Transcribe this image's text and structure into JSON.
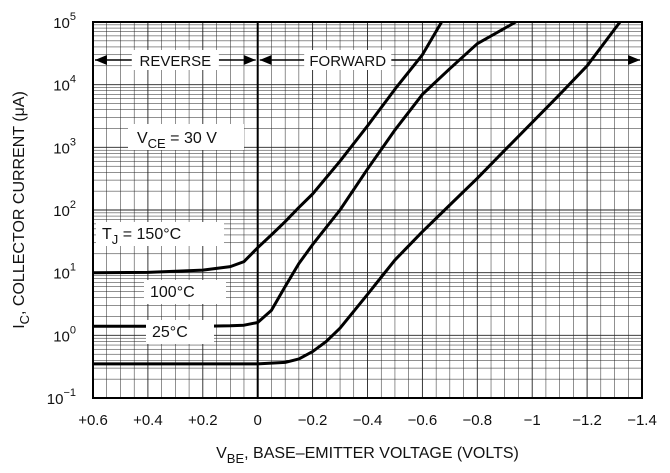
{
  "chart_data": {
    "type": "line",
    "title": "",
    "xlabel": {
      "main": "V",
      "sub": "BE",
      "rest": ", BASE–EMITTER VOLTAGE (VOLTS)"
    },
    "ylabel": {
      "main": "I",
      "sub": "C",
      "rest": ", COLLECTOR CURRENT (μA)"
    },
    "x_scale": "linear",
    "x_direction": "reversed",
    "xlim": [
      0.6,
      -1.4
    ],
    "x_ticks": [
      0.6,
      0.4,
      0.2,
      0,
      -0.2,
      -0.4,
      -0.6,
      -0.8,
      -1.0,
      -1.2,
      -1.4
    ],
    "x_tick_labels": [
      "+0.6",
      "+0.4",
      "+0.2",
      "0",
      "−0.2",
      "−0.4",
      "−0.6",
      "−0.8",
      "−1",
      "−1.2",
      "−1.4"
    ],
    "y_scale": "log",
    "ylim": [
      0.1,
      100000
    ],
    "y_ticks": [
      {
        "base": "10",
        "exp": "−1",
        "value": 0.1
      },
      {
        "base": "10",
        "exp": "0",
        "value": 1
      },
      {
        "base": "10",
        "exp": "1",
        "value": 10
      },
      {
        "base": "10",
        "exp": "2",
        "value": 100
      },
      {
        "base": "10",
        "exp": "3",
        "value": 1000
      },
      {
        "base": "10",
        "exp": "4",
        "value": 10000
      },
      {
        "base": "10",
        "exp": "5",
        "value": 100000
      }
    ],
    "grid": true,
    "regions": [
      {
        "label": "REVERSE",
        "from": 0.6,
        "to": 0
      },
      {
        "label": "FORWARD",
        "from": 0,
        "to": -1.4
      }
    ],
    "annotations": [
      {
        "main": "V",
        "sub": "CE",
        "rest": " = 30 V"
      }
    ],
    "series": [
      {
        "name": {
          "main": "T",
          "sub": "J",
          "rest": " = 150°C"
        },
        "x": [
          0.6,
          0.4,
          0.2,
          0.1,
          0.05,
          0.0,
          -0.05,
          -0.1,
          -0.15,
          -0.2,
          -0.3,
          -0.4,
          -0.5,
          -0.6,
          -0.67
        ],
        "y": [
          10,
          10.1,
          11,
          12.5,
          15,
          25,
          40,
          65,
          110,
          180,
          600,
          2200,
          8500,
          30000,
          100000
        ]
      },
      {
        "name": {
          "main": "",
          "sub": "",
          "rest": "100°C"
        },
        "x": [
          0.6,
          0.4,
          0.2,
          0.1,
          0.05,
          0.0,
          -0.05,
          -0.1,
          -0.15,
          -0.2,
          -0.3,
          -0.4,
          -0.5,
          -0.6,
          -0.7,
          -0.8,
          -0.94
        ],
        "y": [
          1.4,
          1.4,
          1.4,
          1.42,
          1.45,
          1.6,
          2.5,
          6,
          14,
          28,
          100,
          450,
          1900,
          7000,
          18000,
          45000,
          100000
        ]
      },
      {
        "name": {
          "main": "",
          "sub": "",
          "rest": "25°C"
        },
        "x": [
          0.6,
          0.4,
          0.2,
          0.1,
          0.0,
          -0.1,
          -0.15,
          -0.2,
          -0.25,
          -0.3,
          -0.4,
          -0.5,
          -0.6,
          -0.7,
          -0.8,
          -0.9,
          -1.0,
          -1.1,
          -1.2,
          -1.32
        ],
        "y": [
          0.35,
          0.35,
          0.35,
          0.35,
          0.35,
          0.37,
          0.42,
          0.55,
          0.8,
          1.3,
          4.5,
          16,
          45,
          120,
          320,
          900,
          2500,
          7000,
          20000,
          100000
        ]
      }
    ]
  }
}
